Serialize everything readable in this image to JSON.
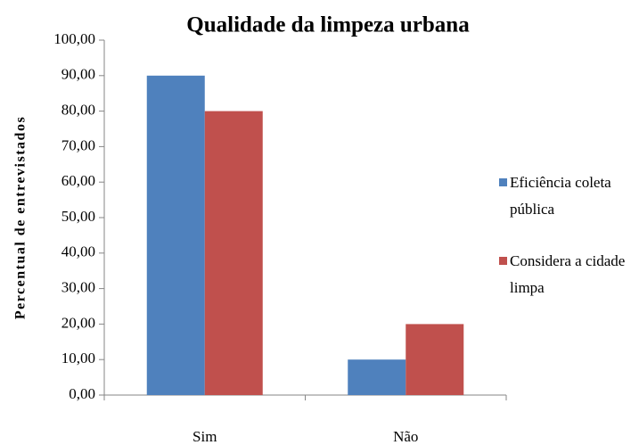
{
  "chart_data": {
    "type": "bar",
    "title": "Qualidade da limpeza urbana",
    "y_label": "Percentual de entrevistados",
    "categories": [
      "Sim",
      "Não"
    ],
    "series": [
      {
        "name": "Eficiência coleta pública",
        "color": "#4f81bd",
        "values": [
          90,
          10
        ]
      },
      {
        "name": "Considera a cidade limpa",
        "color": "#c0504d",
        "values": [
          80,
          20
        ]
      }
    ],
    "ylim": [
      0,
      100
    ],
    "yticks": [
      {
        "value": 0,
        "label": "0,00"
      },
      {
        "value": 10,
        "label": "10,00"
      },
      {
        "value": 20,
        "label": "20,00"
      },
      {
        "value": 30,
        "label": "30,00"
      },
      {
        "value": 40,
        "label": "40,00"
      },
      {
        "value": 50,
        "label": "50,00"
      },
      {
        "value": 60,
        "label": "60,00"
      },
      {
        "value": 70,
        "label": "70,00"
      },
      {
        "value": 80,
        "label": "80,00"
      },
      {
        "value": 90,
        "label": "90,00"
      },
      {
        "value": 100,
        "label": "100,00"
      }
    ],
    "grid": false,
    "legend": "right"
  }
}
